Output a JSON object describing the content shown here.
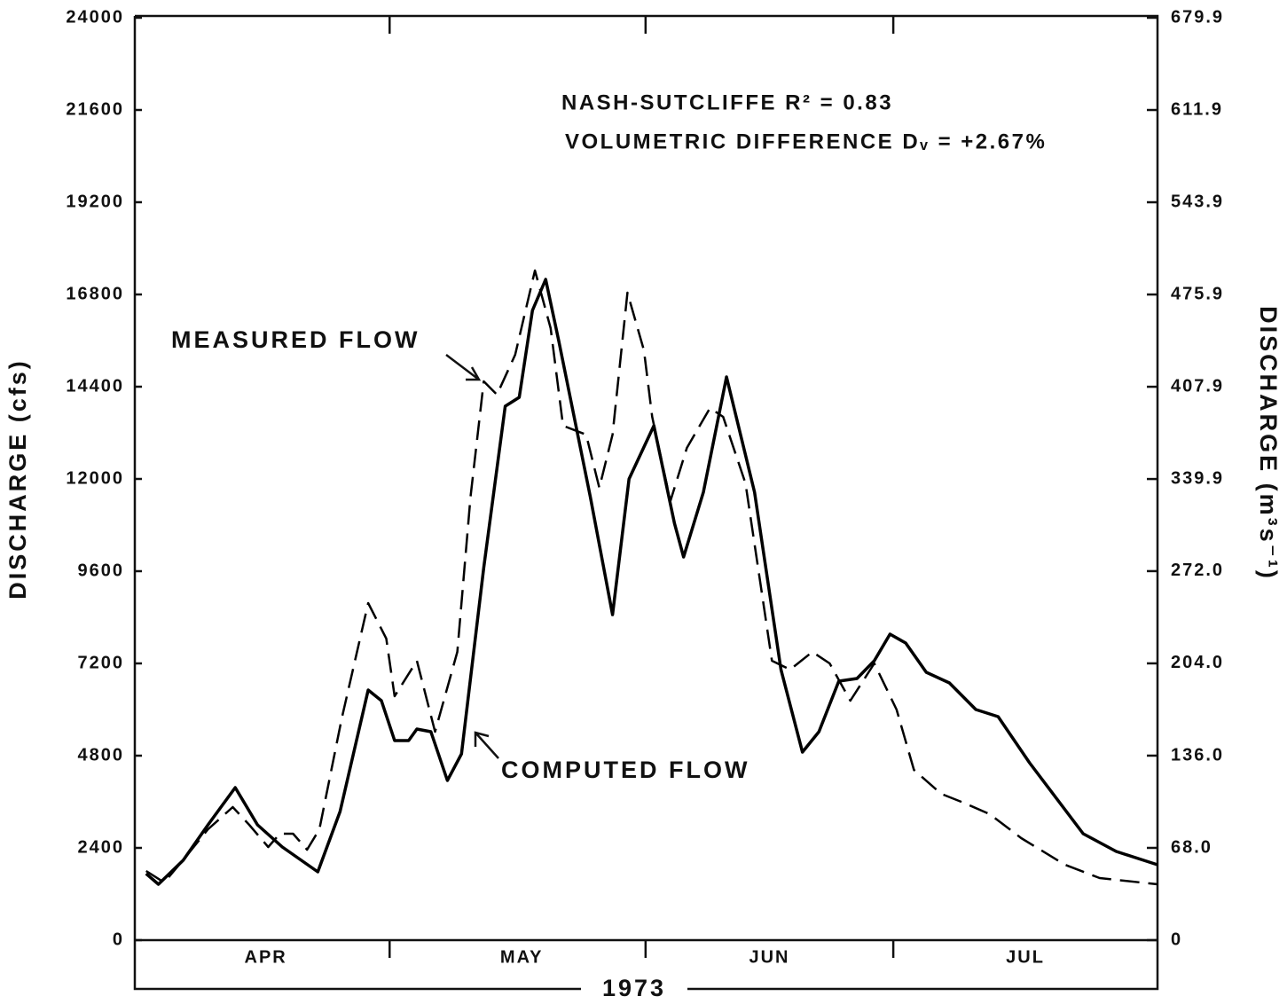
{
  "chart_data": {
    "type": "line",
    "y_label": "DISCHARGE (cfs)",
    "y2_label": "DISCHARGE (m³s⁻¹)",
    "x_label": "1973",
    "annotations": [
      "NASH-SUTCLIFFE R² = 0.83",
      "VOLUMETRIC DIFFERENCE Dᵥ = +2.67%"
    ],
    "xlim": [
      0,
      123
    ],
    "xticks": [
      {
        "value": 15,
        "label": "APR"
      },
      {
        "value": 46,
        "label": "MAY"
      },
      {
        "value": 76,
        "label": "JUN"
      },
      {
        "value": 107,
        "label": "JUL"
      }
    ],
    "month_boundaries": [
      30,
      61,
      91
    ],
    "ylim": [
      0,
      24000
    ],
    "yticks": [
      0,
      2400,
      4800,
      7200,
      9600,
      12000,
      14400,
      16800,
      19200,
      21600,
      24000
    ],
    "y2lim": [
      0,
      679.9
    ],
    "y2ticks": [
      0,
      {
        "value": 68,
        "label": "68.0"
      },
      {
        "value": 136,
        "label": "136.0"
      },
      {
        "value": 204,
        "label": "204.0"
      },
      {
        "value": 272,
        "label": "272.0"
      },
      339.9,
      407.9,
      475.9,
      543.9,
      611.9,
      679.9
    ],
    "series": [
      {
        "name": "MEASURED FLOW",
        "color": "#000000",
        "line_style": "dashed",
        "x": [
          0.5,
          2.7,
          5.4,
          8,
          11,
          13,
          15.3,
          16.7,
          18.3,
          20,
          21.5,
          24.2,
          27.4,
          29.6,
          30.6,
          33.3,
          35.5,
          38.2,
          39.8,
          41.4,
          43,
          45.2,
          47.6,
          49.5,
          51,
          53.8,
          55.4,
          57,
          58.8,
          60.8,
          61.8,
          64,
          66,
          68.8,
          70.4,
          73.1,
          76.3,
          78.5,
          81.2,
          83.3,
          85.8,
          88.7,
          91.4,
          93.5,
          96.8,
          99.5,
          102.7,
          106.5,
          111.8,
          116,
          123
        ],
        "values": [
          1800,
          1500,
          2192,
          2885,
          3462,
          3000,
          2423,
          2769,
          2769,
          2354,
          2885,
          5769,
          8769,
          7846,
          6346,
          7269,
          5423,
          7500,
          11538,
          14538,
          14192,
          15231,
          17423,
          15923,
          13385,
          13154,
          11769,
          13154,
          16846,
          15346,
          13615,
          11423,
          12808,
          13846,
          13615,
          11885,
          7269,
          7038,
          7500,
          7200,
          6231,
          7200,
          6000,
          4431,
          3808,
          3577,
          3277,
          2654,
          1962,
          1615,
          1454
        ]
      },
      {
        "name": "COMPUTED FLOW",
        "color": "#000000",
        "line_style": "solid",
        "x": [
          0.5,
          2,
          5,
          8,
          11.3,
          14,
          17,
          21.3,
          24,
          27.4,
          29,
          30.6,
          32.3,
          33.3,
          35,
          37,
          38.7,
          41.4,
          44,
          45.7,
          47.3,
          48.9,
          50.5,
          54.3,
          57,
          59,
          62,
          64.5,
          65.6,
          68,
          70.8,
          74.2,
          77.4,
          80,
          82,
          84.4,
          86.6,
          88.7,
          90.6,
          92.5,
          95,
          97.8,
          101,
          103.7,
          107.5,
          114,
          118,
          123
        ],
        "values": [
          1731,
          1454,
          2077,
          3000,
          3969,
          3000,
          2423,
          1777,
          3346,
          6508,
          6231,
          5192,
          5192,
          5492,
          5423,
          4154,
          4846,
          9692,
          13892,
          14123,
          16385,
          17192,
          15577,
          11538,
          8469,
          12000,
          13385,
          10846,
          9969,
          11654,
          14654,
          11654,
          7038,
          4892,
          5423,
          6738,
          6808,
          7269,
          7962,
          7731,
          6969,
          6692,
          6000,
          5815,
          4615,
          2769,
          2308,
          1962
        ]
      }
    ]
  }
}
